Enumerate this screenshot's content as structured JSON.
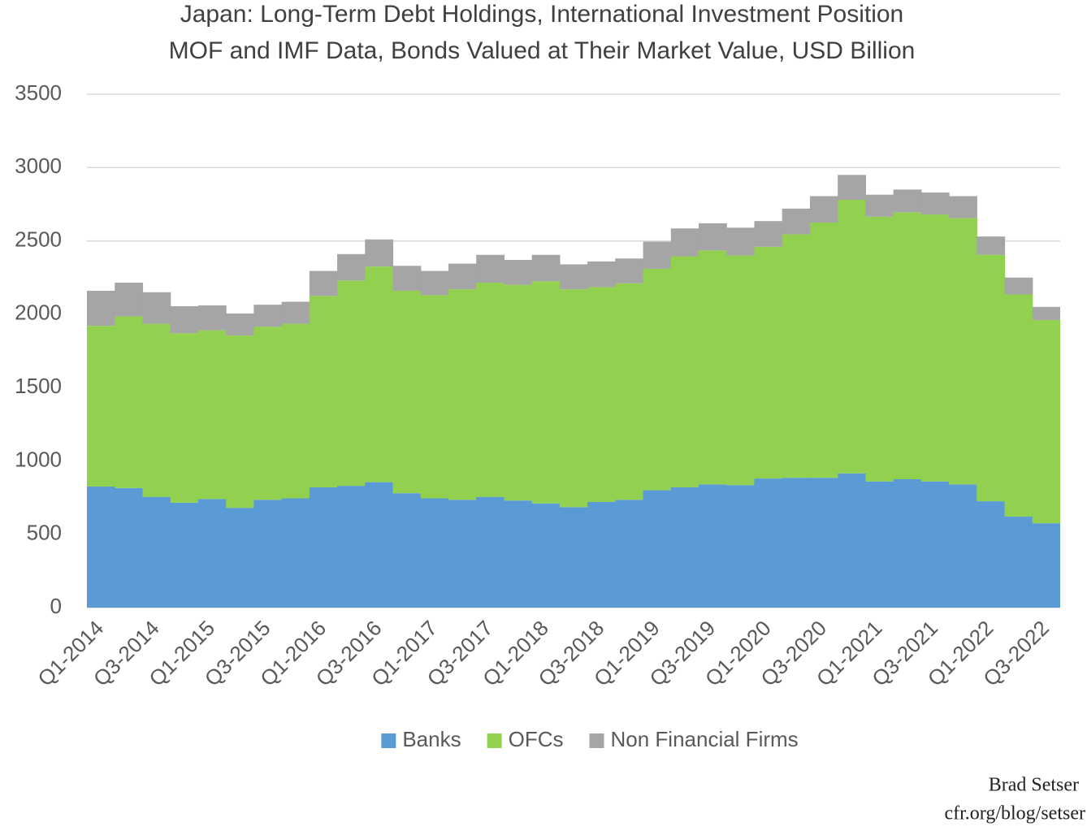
{
  "chart_data": {
    "type": "stacked_area_step",
    "title": "Japan: Long-Term Debt Holdings, International Investment Position",
    "subtitle": "MOF and IMF Data, Bonds Valued at Their Market Value, USD Billion",
    "categories": [
      "Q1-2014",
      null,
      "Q3-2014",
      null,
      "Q1-2015",
      null,
      "Q3-2015",
      null,
      "Q1-2016",
      null,
      "Q3-2016",
      null,
      "Q1-2017",
      null,
      "Q3-2017",
      null,
      "Q1-2018",
      null,
      "Q3-2018",
      null,
      "Q1-2019",
      null,
      "Q3-2019",
      null,
      "Q1-2020",
      null,
      "Q3-2020",
      null,
      "Q1-2021",
      null,
      "Q3-2021",
      null,
      "Q1-2022",
      null,
      "Q3-2022"
    ],
    "series": [
      {
        "name": "Banks",
        "color": "#5b9bd5",
        "values": [
          825,
          815,
          755,
          715,
          740,
          680,
          735,
          745,
          820,
          830,
          855,
          780,
          745,
          735,
          755,
          730,
          710,
          685,
          720,
          735,
          800,
          820,
          840,
          835,
          880,
          885,
          885,
          915,
          860,
          875,
          860,
          840,
          725,
          620,
          575
        ]
      },
      {
        "name": "OFCs",
        "color": "#92d050",
        "values": [
          1096,
          1170,
          1180,
          1155,
          1150,
          1175,
          1180,
          1190,
          1305,
          1400,
          1470,
          1380,
          1385,
          1435,
          1460,
          1470,
          1515,
          1485,
          1465,
          1475,
          1510,
          1575,
          1595,
          1565,
          1580,
          1660,
          1740,
          1865,
          1805,
          1820,
          1820,
          1815,
          1680,
          1515,
          1385
        ]
      },
      {
        "name": "Non Financial Firms",
        "color": "#a5a5a5",
        "values": [
          239,
          230,
          215,
          185,
          170,
          150,
          150,
          150,
          170,
          180,
          185,
          170,
          165,
          175,
          190,
          170,
          180,
          170,
          175,
          170,
          185,
          190,
          185,
          190,
          175,
          175,
          180,
          170,
          150,
          155,
          150,
          150,
          125,
          115,
          90
        ]
      }
    ],
    "ylim": [
      0,
      3500
    ],
    "yticks": [
      0,
      500,
      1000,
      1500,
      2000,
      2500,
      3000,
      3500
    ],
    "grid": true,
    "legend": "bottom",
    "credit": [
      "Brad Setser",
      "cfr.org/blog/setser"
    ]
  }
}
